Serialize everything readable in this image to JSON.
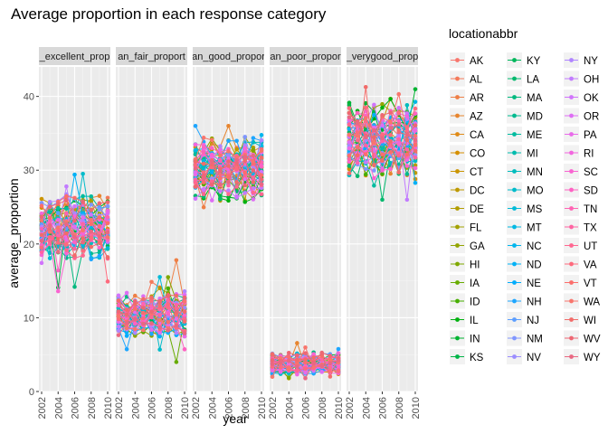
{
  "chart_data": {
    "type": "line",
    "title": "Average proportion in each response category",
    "xlabel": "year",
    "ylabel": "average_proportion",
    "xlim": [
      2002,
      2010
    ],
    "x_ticks": [
      2002,
      2004,
      2006,
      2008,
      2010
    ],
    "ylim": [
      0,
      44
    ],
    "y_ticks": [
      0,
      10,
      20,
      30,
      40
    ],
    "facets": [
      "data_value_excellent_prop",
      "data_value_fair_prop",
      "data_value_good_prop",
      "data_value_poor_prop",
      "data_value_verygood_prop"
    ],
    "facet_labels_visible": [
      "_excellent_prop",
      "an_fair_proport",
      "an_good_propor",
      "an_poor_propor",
      "_verygood_prop"
    ],
    "facet_ranges": {
      "data_value_excellent_prop": [
        11.5,
        29.5
      ],
      "data_value_fair_prop": [
        4,
        17.8
      ],
      "data_value_good_prop": [
        23.5,
        36
      ],
      "data_value_poor_prop": [
        1.8,
        8.8
      ],
      "data_value_verygood_prop": [
        26,
        42.8
      ]
    },
    "facet_centers": {
      "data_value_excellent_prop": 22.5,
      "data_value_fair_prop": 10.5,
      "data_value_good_prop": 30,
      "data_value_poor_prop": 3.8,
      "data_value_verygood_prop": 34.5
    },
    "facet_spread": {
      "data_value_excellent_prop": 2.6,
      "data_value_fair_prop": 1.8,
      "data_value_good_prop": 2.6,
      "data_value_poor_prop": 0.9,
      "data_value_verygood_prop": 3.0
    },
    "grid": true,
    "legend_position": "right",
    "legend_title": "locationabbr",
    "legend_columns": [
      [
        "AK",
        "AL",
        "AR",
        "AZ",
        "CA",
        "CO",
        "CT",
        "DC",
        "DE",
        "FL",
        "GA",
        "HI",
        "IA",
        "ID",
        "IL",
        "IN",
        "KS"
      ],
      [
        "KY",
        "LA",
        "MA",
        "MD",
        "ME",
        "MI",
        "MN",
        "MO",
        "MS",
        "MT",
        "NC",
        "ND",
        "NE",
        "NH",
        "NJ",
        "NM",
        "NV"
      ],
      [
        "NY",
        "OH",
        "OK",
        "OR",
        "PA",
        "RI",
        "SC",
        "SD",
        "TN",
        "TX",
        "UT",
        "VA",
        "VT",
        "WA",
        "WI",
        "WV",
        "WY"
      ]
    ],
    "series_colors": [
      "#F8766D",
      "#F47A5B",
      "#EE7F46",
      "#E7852F",
      "#DF8A17",
      "#D58F00",
      "#CA9400",
      "#BE9900",
      "#B29D00",
      "#A3A100",
      "#92A400",
      "#7FA800",
      "#67AB00",
      "#47AE00",
      "#00B10F",
      "#00B331",
      "#00B547",
      "#00B65B",
      "#00B86D",
      "#00B97E",
      "#00BA8F",
      "#00BB9F",
      "#00BCAE",
      "#00BCBD",
      "#00BBCA",
      "#00BAD7",
      "#00B8E3",
      "#00B5ED",
      "#00B1F6",
      "#00ACFC",
      "#1EA6FF",
      "#5C9EFF",
      "#8096FF",
      "#9B8DFF",
      "#B085FF",
      "#C27CFF",
      "#D174FC",
      "#DE6EF4",
      "#E96AEA",
      "#F266DF",
      "#F964D1",
      "#FE63C3",
      "#FF63B3",
      "#FF64A2",
      "#FF6690",
      "#FE6A7D",
      "#FB6E6B",
      "#F8766D",
      "#F26C6A",
      "#EE6773",
      "#E96882"
    ]
  }
}
